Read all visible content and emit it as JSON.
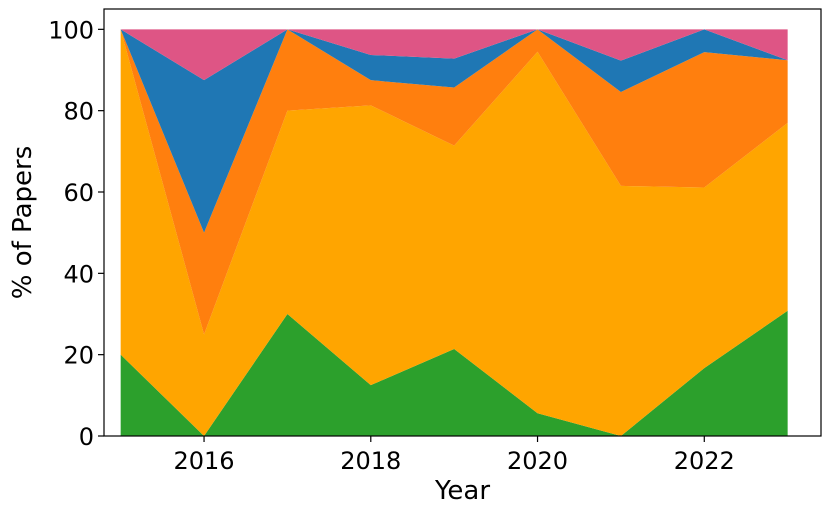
{
  "chart_data": {
    "type": "area",
    "stacked": true,
    "xlabel": "Year",
    "ylabel": "% of Papers",
    "xlim": [
      2014.8,
      2023.4
    ],
    "ylim": [
      0,
      105
    ],
    "x_ticks": [
      2016,
      2018,
      2020,
      2022
    ],
    "y_ticks": [
      0,
      20,
      40,
      60,
      80,
      100
    ],
    "x": [
      2015,
      2016,
      2017,
      2018,
      2019,
      2020,
      2021,
      2022,
      2023
    ],
    "series": [
      {
        "color": "#2ca02c",
        "values": [
          20,
          0,
          30,
          12.5,
          21.4,
          5.6,
          0,
          16.7,
          30.8
        ]
      },
      {
        "color": "#ffa500",
        "values": [
          80,
          25,
          50,
          68.8,
          50,
          88.9,
          61.5,
          44.4,
          46.2
        ]
      },
      {
        "color": "#ff7f0e",
        "values": [
          0,
          25,
          20,
          6.2,
          14.3,
          5.5,
          23.1,
          33.3,
          15.4
        ]
      },
      {
        "color": "#1f77b4",
        "values": [
          0,
          37.5,
          0,
          6.2,
          7.1,
          0,
          7.7,
          5.6,
          0
        ]
      },
      {
        "color": "#de5585",
        "values": [
          0,
          12.5,
          0,
          6.3,
          7.2,
          0,
          7.7,
          0,
          7.6
        ]
      }
    ],
    "grid": false,
    "legend": false
  }
}
